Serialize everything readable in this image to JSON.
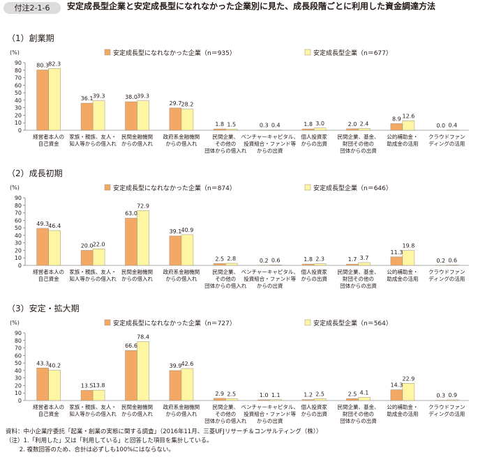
{
  "figure_label": "付注2-1-6",
  "title": "安定成長型企業と安定成長型になれなかった企業別に見た、成長段階ごとに利用した資金調達方法",
  "colors": {
    "not_stable": "#f3a863",
    "stable": "#fff6a3",
    "bar_stroke": "#9a8f7e",
    "label_bg": "#dcdcdc"
  },
  "chart_data": [
    {
      "type": "bar",
      "title": "（1）創業期",
      "ylabel": "(%)",
      "ylim": [
        0,
        90
      ],
      "yticks": [
        0,
        10,
        20,
        30,
        40,
        50,
        60,
        70,
        80,
        90
      ],
      "legend_position": "top",
      "categories": [
        "経営者本人の\n自己資金",
        "家族・親族、友人・\n知人等からの借入れ",
        "民間金融機関\nからの借入れ",
        "政府系金融機関\nからの借入れ",
        "民間企業、\nその他の\n団体からの借入れ",
        "ベンチャーキャピタル、\n投資組合・ファンド等\nからの出資",
        "個人投資家\nからの出資",
        "民間企業、基金、\n財団その他の\n団体からの出資",
        "公的補助金・\n助成金の活用",
        "クラウドファン\nディングの活用"
      ],
      "series": [
        {
          "name": "安定成長型になれなかった企業（n＝935）",
          "values": [
            80.3,
            36.1,
            38.0,
            29.7,
            1.8,
            0.3,
            1.8,
            2.0,
            8.9,
            0.0
          ]
        },
        {
          "name": "安定成長型企業（n＝677）",
          "values": [
            82.3,
            39.3,
            39.3,
            28.2,
            1.5,
            0.4,
            3.0,
            2.4,
            12.6,
            0.4
          ]
        }
      ]
    },
    {
      "type": "bar",
      "title": "（2）成長初期",
      "ylabel": "(%)",
      "ylim": [
        0,
        90
      ],
      "yticks": [
        0,
        10,
        20,
        30,
        40,
        50,
        60,
        70,
        80,
        90
      ],
      "legend_position": "top",
      "categories": [
        "経営者本人の\n自己資金",
        "家族・親族、友人・\n知人等からの借入れ",
        "民間金融機関\nからの借入れ",
        "政府系金融機関\nからの借入れ",
        "民間企業、\nその他の\n団体からの借入れ",
        "ベンチャーキャピタル、\n投資組合・ファンド等\nからの出資",
        "個人投資家\nからの出資",
        "民間企業、基金、\n財団その他の\n団体からの出資",
        "公的補助金・\n助成金の活用",
        "クラウドファン\nディングの活用"
      ],
      "series": [
        {
          "name": "安定成長型になれなかった企業（n＝874）",
          "values": [
            49.3,
            20.0,
            63.0,
            39.1,
            2.5,
            0.2,
            1.8,
            1.7,
            11.3,
            0.2
          ]
        },
        {
          "name": "安定成長型企業（n＝646）",
          "values": [
            46.4,
            22.0,
            72.9,
            40.9,
            2.8,
            0.6,
            2.3,
            3.7,
            19.8,
            0.6
          ]
        }
      ]
    },
    {
      "type": "bar",
      "title": "（3）安定・拡大期",
      "ylabel": "(%)",
      "ylim": [
        0,
        90
      ],
      "yticks": [
        0,
        10,
        20,
        30,
        40,
        50,
        60,
        70,
        80,
        90
      ],
      "legend_position": "top",
      "categories": [
        "経営者本人の\n自己資金",
        "家族・親族、友人・\n知人等からの借入れ",
        "民間金融機関\nからの借入れ",
        "政府系金融機関\nからの借入れ",
        "民間企業、\nその他の\n団体からの借入れ",
        "ベンチャーキャピタル、\n投資組合・ファンド等\nからの出資",
        "個人投資家\nからの出資",
        "民間企業、基金、\n財団その他の\n団体からの出資",
        "公的補助金・\n助成金の活用",
        "クラウドファン\nディングの活用"
      ],
      "series": [
        {
          "name": "安定成長型になれなかった企業（n＝727）",
          "values": [
            43.3,
            13.5,
            66.6,
            39.9,
            2.9,
            1.0,
            1.2,
            2.5,
            14.3,
            0.3
          ]
        },
        {
          "name": "安定成長型企業（n＝564）",
          "values": [
            40.2,
            13.8,
            78.4,
            42.6,
            2.5,
            1.1,
            2.5,
            4.1,
            22.9,
            0.9
          ]
        }
      ]
    }
  ],
  "notes": [
    "資料：中小企業庁委託「起業・創業の実態に関する調査」（2016年11月、三菱UFJリサーチ＆コンサルティング（株））",
    "（注）1.「利用した」又は「利用している」と回答した項目を集計している。",
    "　　 2. 複数回答のため、合計は必ずしも100%にはならない。"
  ]
}
